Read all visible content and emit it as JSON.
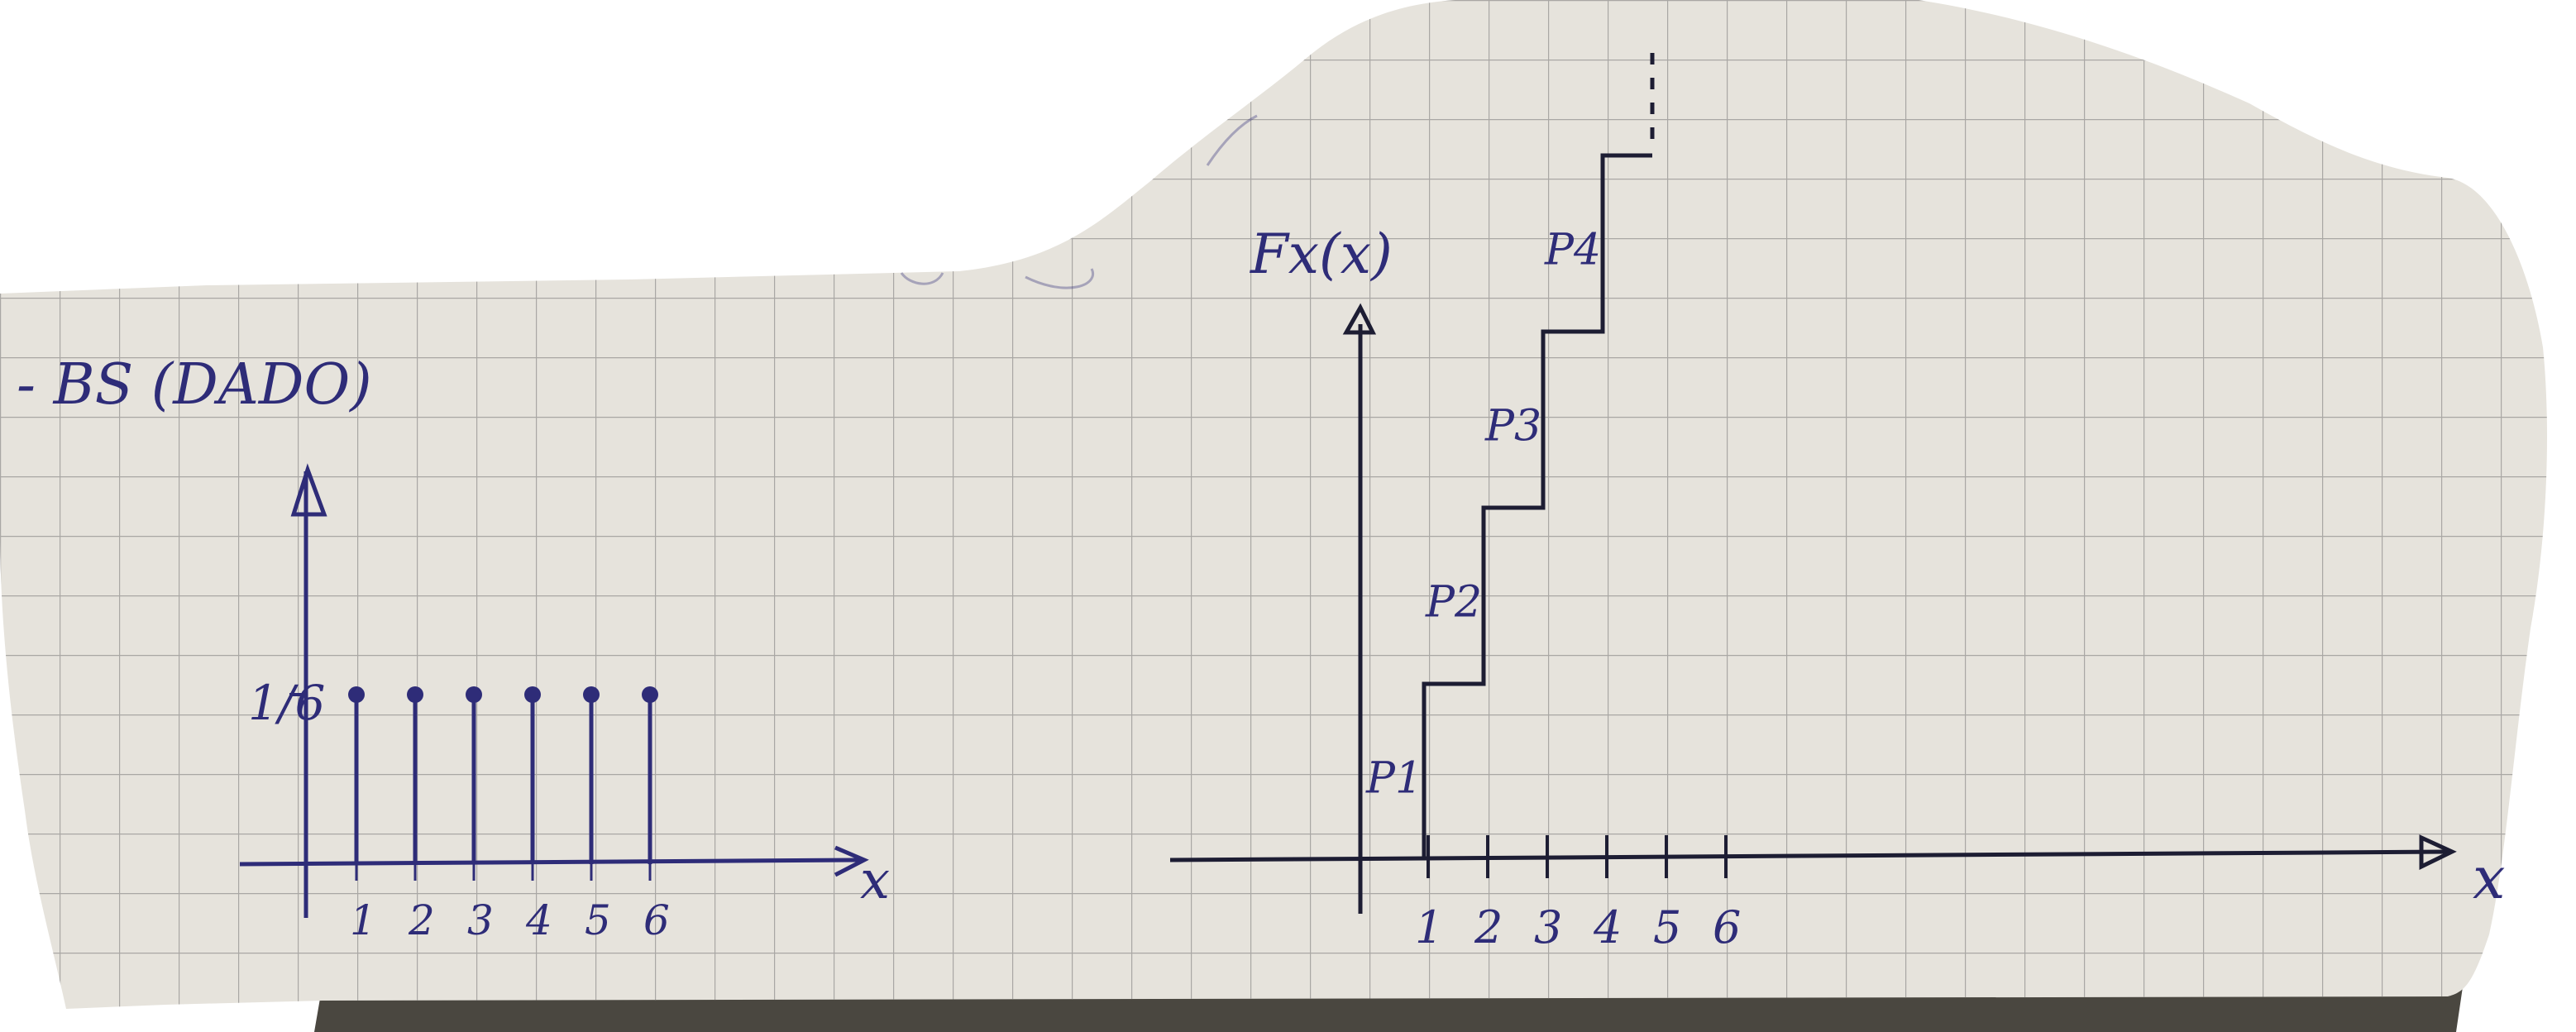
{
  "colors": {
    "paper": "#e6e3dc",
    "grid": "#a9a7a4",
    "background": "#ffffff",
    "shadow": "#4a4740",
    "ink_blue": "#2e2c78",
    "ink_dark": "#1d1d33"
  },
  "chart_data": [
    {
      "type": "stem",
      "title": "- BS (DADO)",
      "ylabel": "",
      "xlabel": "x",
      "x": [
        1,
        2,
        3,
        4,
        5,
        6
      ],
      "y": [
        0.16667,
        0.16667,
        0.16667,
        0.16667,
        0.16667,
        0.16667
      ],
      "x_tick_labels": [
        "1",
        "2",
        "3",
        "4",
        "5",
        "6"
      ],
      "y_tick_labels": [
        "1/6"
      ],
      "xlim": [
        0,
        7
      ],
      "ylim": [
        0,
        0.3
      ],
      "grid": true
    },
    {
      "type": "step",
      "ylabel": "Fx(x)",
      "xlabel": "x",
      "x_ticks": [
        1,
        2,
        3,
        4,
        5,
        6
      ],
      "x_tick_labels": [
        "1",
        "2",
        "3",
        "4",
        "5",
        "6"
      ],
      "step_x": [
        1,
        2,
        3,
        4
      ],
      "step_y": [
        1,
        2,
        3,
        4
      ],
      "step_labels": [
        "P1",
        "P2",
        "P3",
        "P4"
      ],
      "continues": true,
      "grid": true
    }
  ]
}
